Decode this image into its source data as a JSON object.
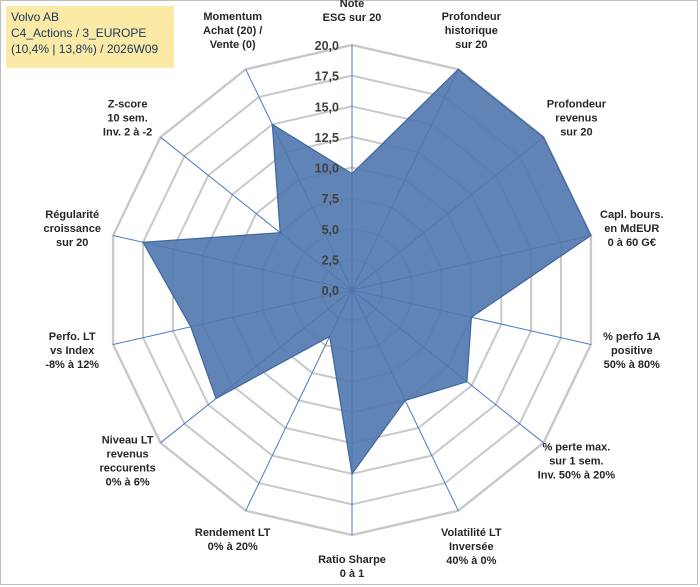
{
  "title_box": {
    "line1": "Volvo AB",
    "line2": "C4_Actions / 3_EUROPE",
    "line3": "(10,4% | 13,8%) / 2026W09"
  },
  "colors": {
    "fill": "#4f77ad",
    "stroke": "#3f66a0",
    "grid": "#c8c8c8",
    "spoke": "#4a7ac8",
    "title_bg": "#fbe9a6"
  },
  "chart_data": {
    "type": "radar",
    "rmax": 20,
    "ticks": [
      "0,0",
      "2,5",
      "5,0",
      "7,5",
      "10,0",
      "12,5",
      "15,0",
      "17,5",
      "20,0"
    ],
    "tick_values": [
      0,
      2.5,
      5,
      7.5,
      10,
      12.5,
      15,
      17.5,
      20
    ],
    "axes": [
      {
        "label": [
          "Note",
          "ESG sur 20"
        ],
        "value": 9.5
      },
      {
        "label": [
          "Profondeur",
          "historique",
          "sur 20"
        ],
        "value": 20
      },
      {
        "label": [
          "Profondeur",
          "revenus",
          "sur 20"
        ],
        "value": 20
      },
      {
        "label": [
          "Capl. bours.",
          "en MdEUR",
          "0 à 60 G€"
        ],
        "value": 20
      },
      {
        "label": [
          "% perfo 1A",
          "positive",
          "50% à 80%"
        ],
        "value": 10
      },
      {
        "label": [
          "% perte max.",
          "sur 1 sem.",
          "Inv. 50% à 20%"
        ],
        "value": 12
      },
      {
        "label": [
          "Volatilité LT",
          "Inversée",
          "40% à 0%"
        ],
        "value": 10
      },
      {
        "label": [
          "Ratio Sharpe",
          "0 à 1"
        ],
        "value": 15
      },
      {
        "label": [
          "Rendement LT",
          "0% à 20%"
        ],
        "value": 4.2
      },
      {
        "label": [
          "Niveau LT",
          "revenus",
          "reccurents",
          "0% à 6%"
        ],
        "value": 14.2
      },
      {
        "label": [
          "Perfo. LT",
          "vs Index",
          "-8% à 12%"
        ],
        "value": 13.5
      },
      {
        "label": [
          "Régularité",
          "croissance",
          "sur 20"
        ],
        "value": 17.5
      },
      {
        "label": [
          "Z-score",
          "10 sem.",
          "Inv. 2 à -2"
        ],
        "value": 7.5
      },
      {
        "label": [
          "Momentum",
          "Achat (20) /",
          "Vente (0)"
        ],
        "value": 15
      }
    ]
  }
}
